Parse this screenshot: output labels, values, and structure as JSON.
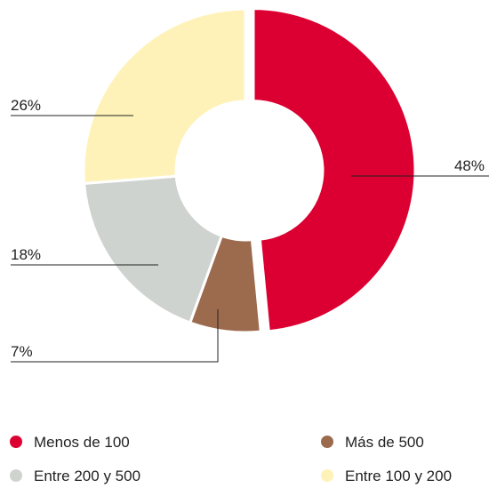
{
  "chart_data": {
    "type": "donut",
    "categories": [
      "Menos de 100",
      "Más de 500",
      "Entre 200 y 500",
      "Entre 100 y 200"
    ],
    "values": [
      48,
      7,
      18,
      26
    ],
    "value_labels": [
      "48%",
      "7%",
      "18%",
      "26%"
    ],
    "colors": [
      "#dc0032",
      "#9c6b4e",
      "#cfd3cf",
      "#fff2b8"
    ]
  }
}
